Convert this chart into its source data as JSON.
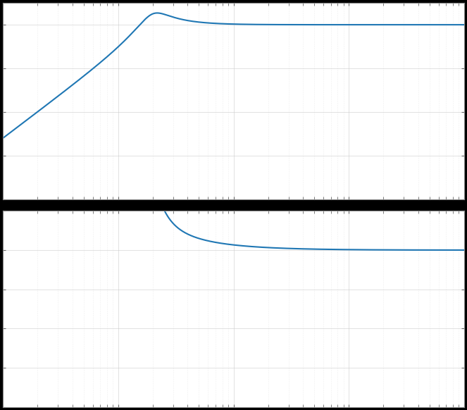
{
  "title": "",
  "line_color": "#1f77b4",
  "line_width": 1.5,
  "background_color": "#ffffff",
  "grid_color": "#cccccc",
  "fig_width": 6.63,
  "fig_height": 5.82,
  "dpi": 100,
  "freq_min": 0.1,
  "freq_max": 1000,
  "f0": 2.0,
  "zeta": 0.28,
  "mag_ylim_min": -80,
  "mag_ylim_max": 10,
  "phase_ylim_min": -200,
  "phase_ylim_max": 50
}
